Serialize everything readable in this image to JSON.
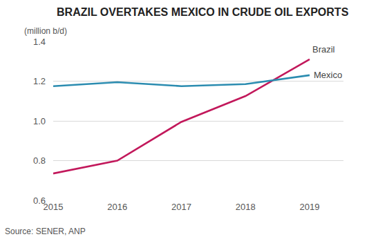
{
  "chart_data": {
    "type": "line",
    "title": "BRAZIL OVERTAKES MEXICO IN CRUDE OIL EXPORTS",
    "y_label": "(million b/d)",
    "source": "Source: SENER, ANP",
    "categories": [
      "2015",
      "2016",
      "2017",
      "2018",
      "2019"
    ],
    "series": [
      {
        "name": "Brazil",
        "color": "#c2185b",
        "values": [
          0.735,
          0.8,
          0.995,
          1.125,
          1.31
        ]
      },
      {
        "name": "Mexico",
        "color": "#2b8cb0",
        "values": [
          1.175,
          1.195,
          1.175,
          1.185,
          1.23
        ]
      }
    ],
    "ylim": [
      0.6,
      1.4
    ],
    "yticks": [
      0.6,
      0.8,
      {
        "value": 1,
        "label": "1.0"
      },
      1.2,
      1.4
    ],
    "grid": true
  }
}
